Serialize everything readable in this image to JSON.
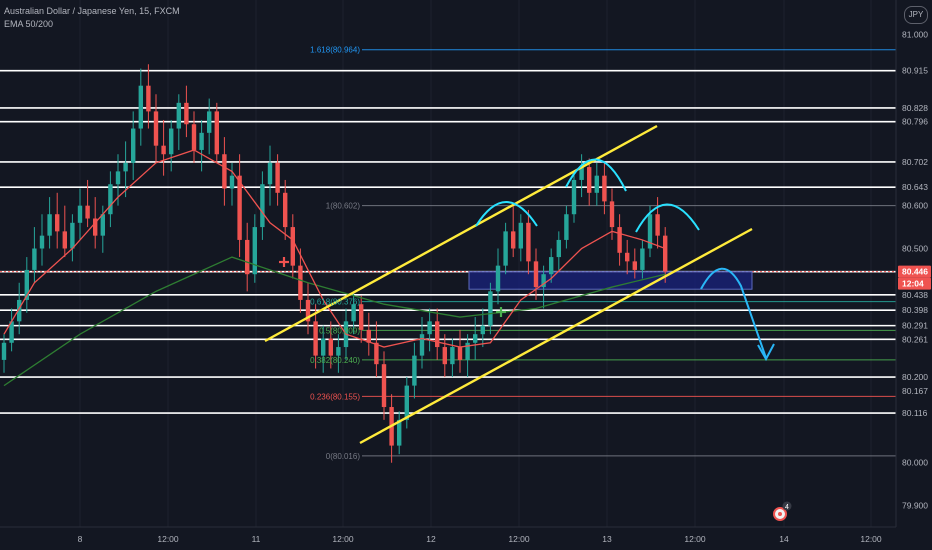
{
  "header": {
    "symbol": "Australian Dollar / Japanese Yen, 15, FXCM",
    "indicator": "EMA 50/200",
    "currency_button": "JPY"
  },
  "colors": {
    "background": "#131722",
    "candle": "#26a69a",
    "ema_fast": "#ef5350",
    "ema_slow": "#2e7d32",
    "channel": "#ffeb3b",
    "arrow": "#29b6f6",
    "fib": "#787b86",
    "level": "#ffffff",
    "box": "#1a237e"
  },
  "chart_data": {
    "type": "candlestick",
    "ylim": [
      79.85,
      81.08
    ],
    "y_ticks": [
      {
        "label": "81.000",
        "value": 81.0
      },
      {
        "label": "80.915",
        "value": 80.915
      },
      {
        "label": "80.828",
        "value": 80.828
      },
      {
        "label": "80.796",
        "value": 80.796
      },
      {
        "label": "80.702",
        "value": 80.702
      },
      {
        "label": "80.643",
        "value": 80.643
      },
      {
        "label": "80.600",
        "value": 80.6
      },
      {
        "label": "80.500",
        "value": 80.5
      },
      {
        "label": "80.446",
        "value": 80.446,
        "style": "red"
      },
      {
        "label": "12:04",
        "value": 80.418,
        "style": "red"
      },
      {
        "label": "80.438",
        "value": 80.392
      },
      {
        "label": "80.398",
        "value": 80.356
      },
      {
        "label": "80.291",
        "value": 80.32
      },
      {
        "label": "80.261",
        "value": 80.288
      },
      {
        "label": "80.200",
        "value": 80.2
      },
      {
        "label": "80.167",
        "value": 80.167
      },
      {
        "label": "80.116",
        "value": 80.116
      },
      {
        "label": "80.000",
        "value": 80.0
      },
      {
        "label": "79.900",
        "value": 79.9
      }
    ],
    "x_ticks": [
      "8",
      "12:00",
      "11",
      "12:00",
      "12",
      "12:00",
      "13",
      "12:00",
      "14",
      "12:00"
    ],
    "white_levels": [
      80.915,
      80.828,
      80.796,
      80.702,
      80.643,
      80.446,
      80.392,
      80.356,
      80.32,
      80.288,
      80.2,
      80.116
    ],
    "fib_levels": [
      {
        "label": "1.618(80.964)",
        "value": 80.964
      },
      {
        "label": "1(80.602)",
        "value": 80.6
      },
      {
        "label": "0.618(80.376)",
        "value": 80.376
      },
      {
        "label": "0.5(80.309)",
        "value": 80.309
      },
      {
        "label": "0.382(80.240)",
        "value": 80.24
      },
      {
        "label": "0.236(80.155)",
        "value": 80.155
      },
      {
        "label": "0(80.016)",
        "value": 80.016
      }
    ],
    "close_price": 80.446,
    "candles": [
      [
        80.24,
        80.3,
        80.21,
        80.28
      ],
      [
        80.28,
        80.36,
        80.26,
        80.33
      ],
      [
        80.33,
        80.42,
        80.3,
        80.38
      ],
      [
        80.38,
        80.48,
        80.35,
        80.45
      ],
      [
        80.45,
        80.55,
        80.42,
        80.5
      ],
      [
        80.5,
        80.58,
        80.46,
        80.53
      ],
      [
        80.53,
        80.62,
        80.5,
        80.58
      ],
      [
        80.58,
        80.63,
        80.5,
        80.54
      ],
      [
        80.54,
        80.6,
        80.48,
        80.5
      ],
      [
        80.5,
        80.58,
        80.47,
        80.56
      ],
      [
        80.56,
        80.64,
        80.52,
        80.6
      ],
      [
        80.6,
        80.66,
        80.55,
        80.57
      ],
      [
        80.57,
        80.62,
        80.5,
        80.53
      ],
      [
        80.53,
        80.6,
        80.49,
        80.58
      ],
      [
        80.58,
        80.68,
        80.55,
        80.65
      ],
      [
        80.65,
        80.72,
        80.6,
        80.68
      ],
      [
        80.68,
        80.75,
        80.62,
        80.7
      ],
      [
        80.7,
        80.82,
        80.66,
        80.78
      ],
      [
        80.78,
        80.92,
        80.74,
        80.88
      ],
      [
        80.88,
        80.93,
        80.78,
        80.82
      ],
      [
        80.82,
        80.86,
        80.7,
        80.74
      ],
      [
        80.74,
        80.8,
        80.67,
        80.72
      ],
      [
        80.72,
        80.8,
        80.68,
        80.78
      ],
      [
        80.78,
        80.86,
        80.73,
        80.84
      ],
      [
        80.84,
        80.88,
        80.76,
        80.79
      ],
      [
        80.79,
        80.82,
        80.7,
        80.73
      ],
      [
        80.73,
        80.8,
        80.68,
        80.77
      ],
      [
        80.77,
        80.85,
        80.72,
        80.82
      ],
      [
        80.82,
        80.84,
        80.7,
        80.72
      ],
      [
        80.72,
        80.76,
        80.6,
        80.64
      ],
      [
        80.64,
        80.7,
        80.6,
        80.67
      ],
      [
        80.67,
        80.72,
        80.48,
        80.52
      ],
      [
        80.52,
        80.56,
        80.4,
        80.44
      ],
      [
        80.44,
        80.58,
        80.42,
        80.55
      ],
      [
        80.55,
        80.68,
        80.52,
        80.65
      ],
      [
        80.65,
        80.74,
        80.6,
        80.7
      ],
      [
        80.7,
        80.72,
        80.6,
        80.63
      ],
      [
        80.63,
        80.66,
        80.52,
        80.55
      ],
      [
        80.55,
        80.58,
        80.43,
        80.46
      ],
      [
        80.46,
        80.5,
        80.35,
        80.38
      ],
      [
        80.38,
        80.42,
        80.3,
        80.33
      ],
      [
        80.33,
        80.37,
        80.22,
        80.25
      ],
      [
        80.25,
        80.32,
        80.21,
        80.29
      ],
      [
        80.29,
        80.33,
        80.22,
        80.25
      ],
      [
        80.25,
        80.3,
        80.21,
        80.27
      ],
      [
        80.27,
        80.36,
        80.24,
        80.33
      ],
      [
        80.33,
        80.4,
        80.3,
        80.37
      ],
      [
        80.37,
        80.39,
        80.28,
        80.31
      ],
      [
        80.31,
        80.35,
        80.25,
        80.28
      ],
      [
        80.28,
        80.33,
        80.2,
        80.23
      ],
      [
        80.23,
        80.26,
        80.1,
        80.13
      ],
      [
        80.13,
        80.16,
        80.0,
        80.04
      ],
      [
        80.04,
        80.12,
        80.02,
        80.1
      ],
      [
        80.1,
        80.2,
        80.08,
        80.18
      ],
      [
        80.18,
        80.28,
        80.15,
        80.25
      ],
      [
        80.25,
        80.34,
        80.22,
        80.3
      ],
      [
        80.3,
        80.36,
        80.26,
        80.33
      ],
      [
        80.33,
        80.36,
        80.24,
        80.27
      ],
      [
        80.27,
        80.3,
        80.2,
        80.23
      ],
      [
        80.23,
        80.29,
        80.2,
        80.27
      ],
      [
        80.27,
        80.31,
        80.21,
        80.24
      ],
      [
        80.24,
        80.3,
        80.2,
        80.28
      ],
      [
        80.28,
        80.34,
        80.24,
        80.3
      ],
      [
        80.3,
        80.36,
        80.27,
        80.32
      ],
      [
        80.32,
        80.42,
        80.3,
        80.4
      ],
      [
        80.4,
        80.5,
        80.37,
        80.46
      ],
      [
        80.46,
        80.56,
        80.44,
        80.54
      ],
      [
        80.54,
        80.6,
        80.48,
        80.5
      ],
      [
        80.5,
        80.58,
        80.47,
        80.56
      ],
      [
        80.56,
        80.59,
        80.44,
        80.47
      ],
      [
        80.47,
        80.5,
        80.38,
        80.41
      ],
      [
        80.41,
        80.46,
        80.36,
        80.44
      ],
      [
        80.44,
        80.5,
        80.42,
        80.48
      ],
      [
        80.48,
        80.54,
        80.45,
        80.52
      ],
      [
        80.52,
        80.6,
        80.5,
        80.58
      ],
      [
        80.58,
        80.68,
        80.56,
        80.66
      ],
      [
        80.66,
        80.72,
        80.62,
        80.69
      ],
      [
        80.69,
        80.71,
        80.6,
        80.63
      ],
      [
        80.63,
        80.7,
        80.6,
        80.67
      ],
      [
        80.67,
        80.7,
        80.58,
        80.61
      ],
      [
        80.61,
        80.64,
        80.52,
        80.55
      ],
      [
        80.55,
        80.58,
        80.46,
        80.49
      ],
      [
        80.49,
        80.52,
        80.44,
        80.47
      ],
      [
        80.47,
        80.5,
        80.43,
        80.45
      ],
      [
        80.45,
        80.52,
        80.43,
        80.5
      ],
      [
        80.5,
        80.6,
        80.48,
        80.58
      ],
      [
        80.58,
        80.62,
        80.5,
        80.53
      ],
      [
        80.53,
        80.55,
        80.42,
        80.446
      ]
    ],
    "ema_fast_pts": [
      [
        0,
        80.3
      ],
      [
        4,
        80.42
      ],
      [
        9,
        80.5
      ],
      [
        15,
        80.62
      ],
      [
        20,
        80.7
      ],
      [
        25,
        80.73
      ],
      [
        30,
        80.68
      ],
      [
        35,
        80.56
      ],
      [
        38,
        80.52
      ],
      [
        42,
        80.38
      ],
      [
        45,
        80.3
      ],
      [
        50,
        80.27
      ],
      [
        55,
        80.29
      ],
      [
        60,
        80.27
      ],
      [
        64,
        80.28
      ],
      [
        68,
        80.38
      ],
      [
        72,
        80.43
      ],
      [
        76,
        80.5
      ],
      [
        80,
        80.54
      ],
      [
        84,
        80.52
      ],
      [
        87,
        80.5
      ]
    ],
    "ema_slow_pts": [
      [
        0,
        80.18
      ],
      [
        10,
        80.3
      ],
      [
        20,
        80.4
      ],
      [
        30,
        80.48
      ],
      [
        40,
        80.42
      ],
      [
        50,
        80.37
      ],
      [
        60,
        80.34
      ],
      [
        70,
        80.36
      ],
      [
        80,
        80.41
      ],
      [
        87,
        80.44
      ]
    ]
  },
  "annotations": {
    "marker_badge": "4"
  }
}
